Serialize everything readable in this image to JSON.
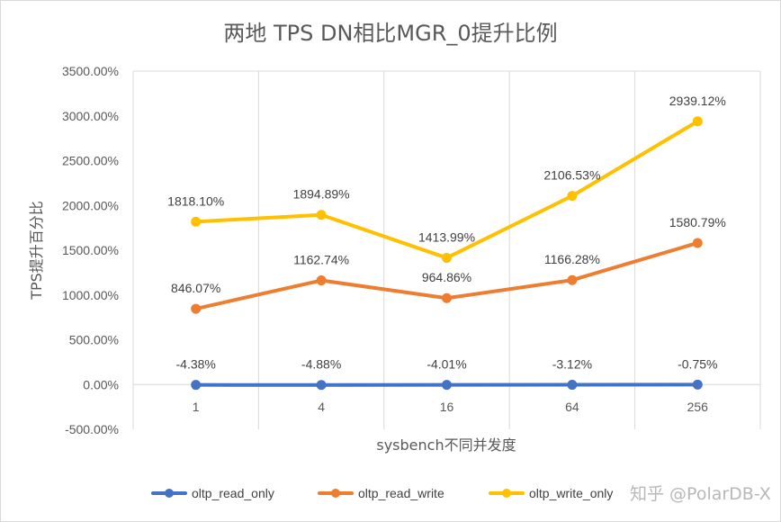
{
  "chart_data": {
    "type": "line",
    "title": "两地 TPS DN相比MGR_0提升比例",
    "xlabel": "sysbench不同并发度",
    "ylabel": "TPS提升百分比",
    "categories": [
      "1",
      "4",
      "16",
      "64",
      "256"
    ],
    "ylim": [
      -500,
      3500
    ],
    "yticks": [
      -500,
      0,
      500,
      1000,
      1500,
      2000,
      2500,
      3000,
      3500
    ],
    "ytick_labels": [
      "-500.00%",
      "0.00%",
      "500.00%",
      "1000.00%",
      "1500.00%",
      "2000.00%",
      "2500.00%",
      "3000.00%",
      "3500.00%"
    ],
    "grid": "vertical",
    "legend_position": "bottom",
    "series": [
      {
        "name": "oltp_read_only",
        "color": "#4472C4",
        "values": [
          -4.38,
          -4.88,
          -4.01,
          -3.12,
          -0.75
        ],
        "labels": [
          "-4.38%",
          "-4.88%",
          "-4.01%",
          "-3.12%",
          "-0.75%"
        ]
      },
      {
        "name": "oltp_read_write",
        "color": "#ED7D31",
        "values": [
          846.07,
          1162.74,
          964.86,
          1166.28,
          1580.79
        ],
        "labels": [
          "846.07%",
          "1162.74%",
          "964.86%",
          "1166.28%",
          "1580.79%"
        ]
      },
      {
        "name": "oltp_write_only",
        "color": "#FFC000",
        "values": [
          1818.1,
          1894.89,
          1413.99,
          2106.53,
          2939.12
        ],
        "labels": [
          "1818.10%",
          "1894.89%",
          "1413.99%",
          "2106.53%",
          "2939.12%"
        ]
      }
    ]
  },
  "watermark": "知乎 @PolarDB-X"
}
